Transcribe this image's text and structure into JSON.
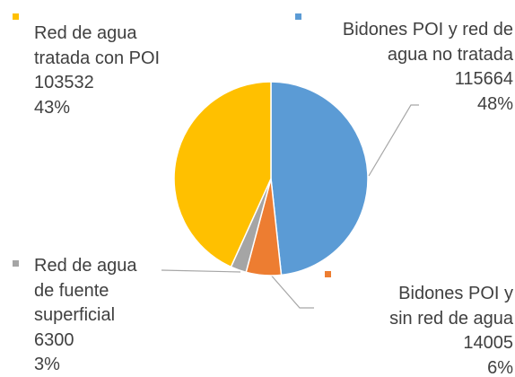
{
  "chart_data": {
    "type": "pie",
    "categories": [
      "Bidones POI y red de agua no tratada",
      "Bidones POI y sin red de agua",
      "Red de agua de fuente superficial",
      "Red de agua tratada con POI"
    ],
    "values": [
      115664,
      14005,
      6300,
      103532
    ],
    "percent_labels": [
      "48%",
      "6%",
      "3%",
      "43%"
    ],
    "colors": [
      "#5b9bd5",
      "#ed7d31",
      "#a5a5a5",
      "#ffc000"
    ]
  }
}
